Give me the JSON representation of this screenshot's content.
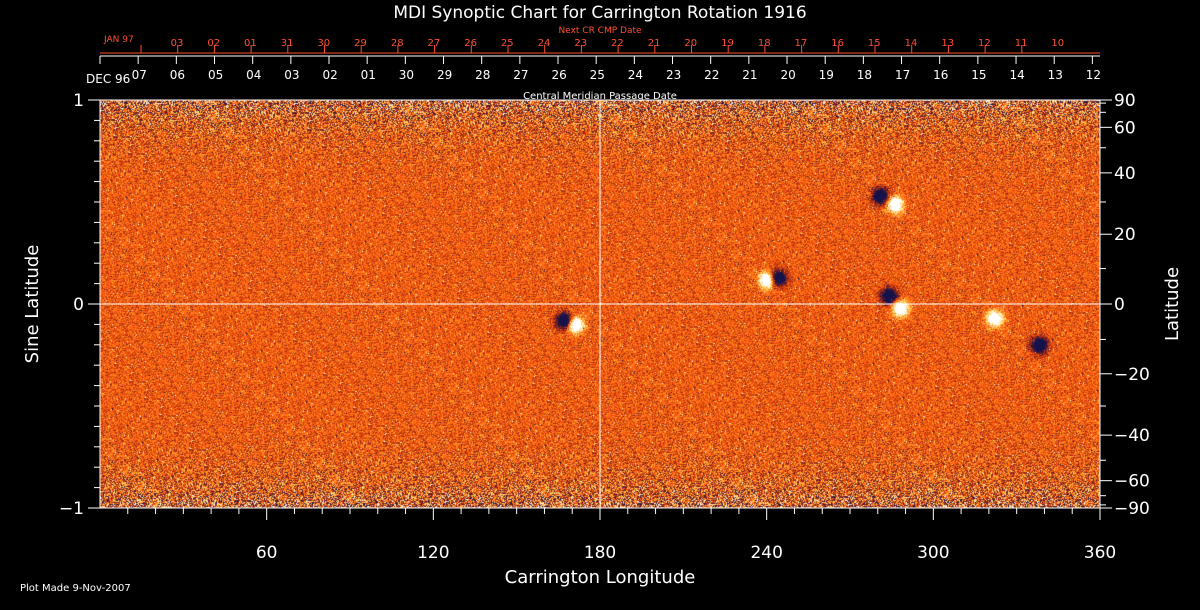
{
  "chart_data": {
    "type": "heatmap",
    "title": "MDI Synoptic Chart for Carrington Rotation 1916",
    "xlabel": "Carrington Longitude",
    "ylabel_left": "Sine Latitude",
    "ylabel_right": "Latitude",
    "xlim": [
      0,
      360
    ],
    "ylim": [
      -1,
      1
    ],
    "x_ticks": [
      60,
      120,
      180,
      240,
      300,
      360
    ],
    "y_ticks_left": [
      {
        "value": 1,
        "label": "1"
      },
      {
        "value": 0,
        "label": "0"
      },
      {
        "value": -1,
        "label": "−1"
      }
    ],
    "y_ticks_right": [
      {
        "deg": 90,
        "label": "90"
      },
      {
        "deg": 60,
        "label": "60"
      },
      {
        "deg": 40,
        "label": "40"
      },
      {
        "deg": 20,
        "label": "20"
      },
      {
        "deg": 0,
        "label": "0"
      },
      {
        "deg": -20,
        "label": "−20"
      },
      {
        "deg": -40,
        "label": "−40"
      },
      {
        "deg": -60,
        "label": "−60"
      },
      {
        "deg": -90,
        "label": "−90"
      }
    ],
    "cmp_axis": {
      "label": "Central Meridian Passage Date",
      "start_month_label": "DEC 96",
      "dates": [
        "07",
        "06",
        "05",
        "04",
        "03",
        "02",
        "01",
        "30",
        "29",
        "28",
        "27",
        "26",
        "25",
        "24",
        "23",
        "22",
        "21",
        "20",
        "19",
        "18",
        "17",
        "16",
        "15",
        "14",
        "13",
        "12"
      ]
    },
    "next_cr_axis": {
      "label": "Next CR CMP Date",
      "start_month_label": "JAN 97",
      "dates": [
        "03",
        "02",
        "01",
        "31",
        "30",
        "29",
        "28",
        "27",
        "26",
        "25",
        "24",
        "23",
        "22",
        "21",
        "20",
        "19",
        "18",
        "17",
        "16",
        "15",
        "14",
        "13",
        "12",
        "11",
        "10"
      ]
    },
    "active_regions": [
      {
        "lon": 167,
        "sinlat": -0.08,
        "polarity": "negative"
      },
      {
        "lon": 171,
        "sinlat": -0.1,
        "polarity": "positive"
      },
      {
        "lon": 240,
        "sinlat": 0.12,
        "polarity": "positive"
      },
      {
        "lon": 244,
        "sinlat": 0.13,
        "polarity": "negative"
      },
      {
        "lon": 281,
        "sinlat": 0.53,
        "polarity": "negative"
      },
      {
        "lon": 286,
        "sinlat": 0.49,
        "polarity": "positive"
      },
      {
        "lon": 284,
        "sinlat": 0.04,
        "polarity": "negative"
      },
      {
        "lon": 288,
        "sinlat": -0.02,
        "polarity": "positive"
      },
      {
        "lon": 322,
        "sinlat": -0.07,
        "polarity": "positive"
      },
      {
        "lon": 338,
        "sinlat": -0.2,
        "polarity": "negative"
      }
    ],
    "grid": true,
    "colors": {
      "background": "#000000",
      "field_base": "#ff5a10",
      "positive": "#ffffff",
      "negative": "#14124a",
      "next_cr": "#ff5030"
    }
  },
  "footer": {
    "plot_made": "Plot Made  9-Nov-2007"
  }
}
